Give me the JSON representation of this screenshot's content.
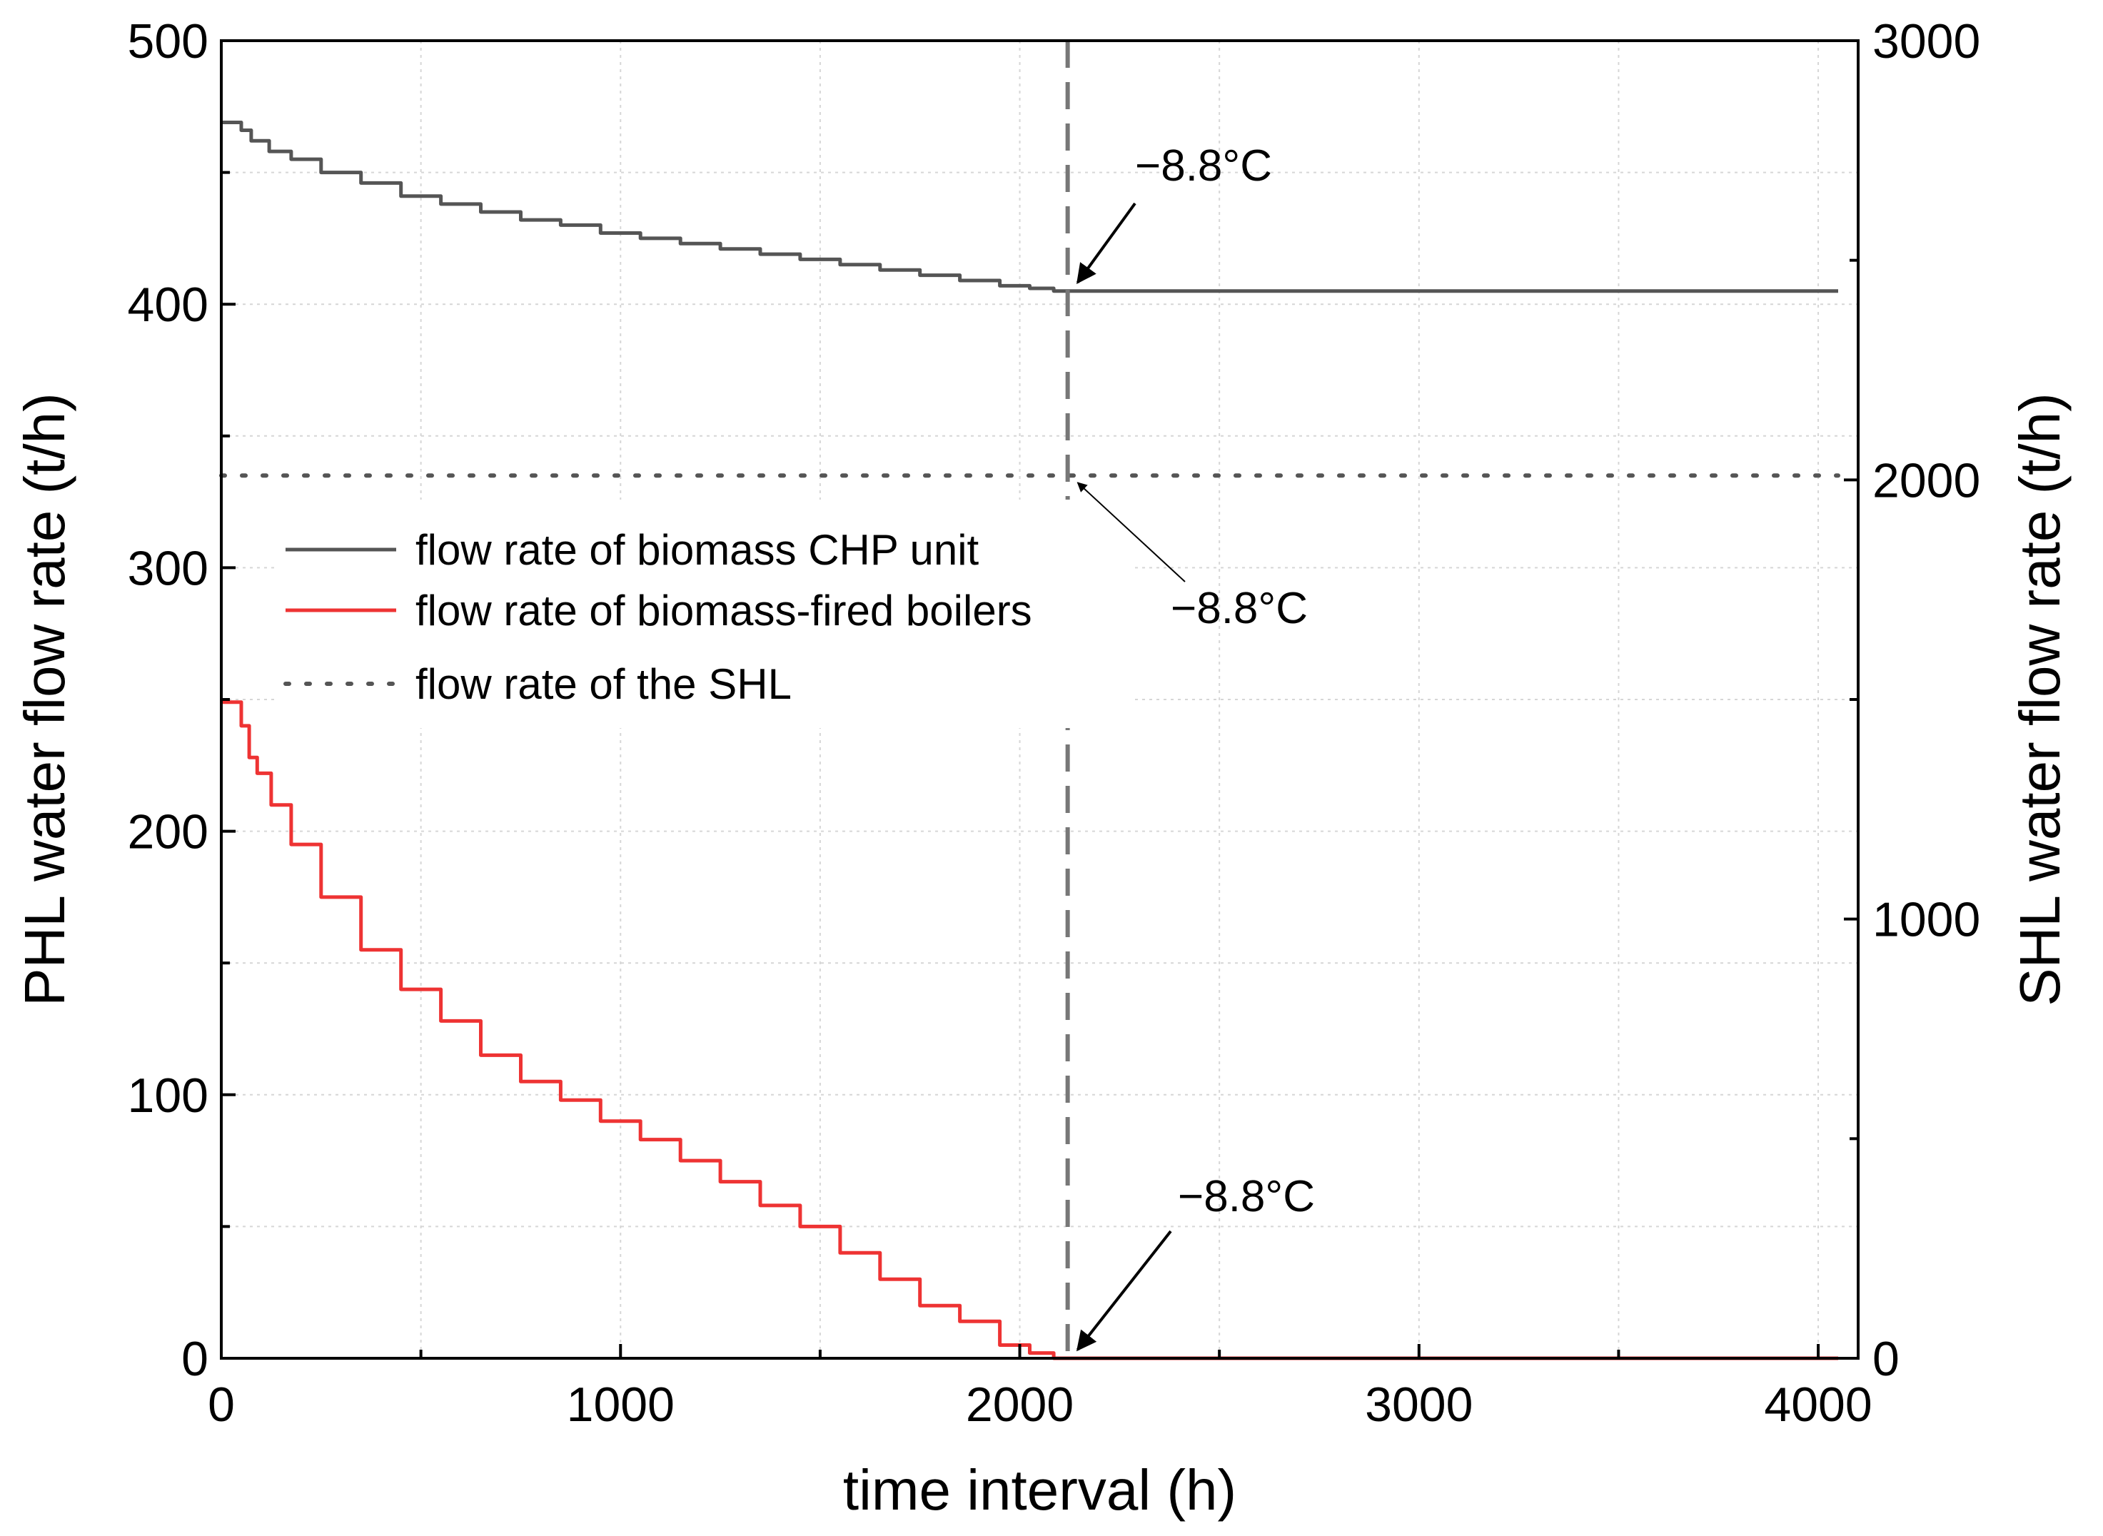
{
  "chart_data": {
    "type": "line",
    "title": "",
    "xlabel": "time interval  (h)",
    "ylabel_left": "PHL water flow rate (t/h)",
    "ylabel_right": "SHL water flow rate (t/h)",
    "xlim": [
      0,
      4100
    ],
    "ylim_left": [
      0,
      500
    ],
    "ylim_right": [
      0,
      3000
    ],
    "x_ticks": [
      "0",
      "1000",
      "2000",
      "3000",
      "4000"
    ],
    "y_left_ticks": [
      "0",
      "100",
      "200",
      "300",
      "400",
      "500"
    ],
    "y_right_ticks": [
      "0",
      "1000",
      "2000",
      "3000"
    ],
    "grid": true,
    "legend_position": "center-left",
    "marker_x": 2120,
    "series": [
      {
        "name": "flow rate of biomass CHP unit",
        "axis": "left",
        "style": "solid",
        "color": "#555555",
        "x": [
          0,
          40,
          60,
          90,
          150,
          200,
          300,
          400,
          500,
          600,
          700,
          800,
          900,
          1000,
          1100,
          1200,
          1300,
          1400,
          1500,
          1600,
          1700,
          1800,
          1900,
          2000,
          2050,
          2120,
          2200,
          2500,
          3000,
          3500,
          4000,
          4050
        ],
        "values": [
          469,
          469,
          466,
          462,
          458,
          455,
          450,
          446,
          441,
          438,
          435,
          432,
          430,
          427,
          425,
          423,
          421,
          419,
          417,
          415,
          413,
          411,
          409,
          407,
          406,
          405,
          405,
          405,
          405,
          405,
          405,
          405
        ]
      },
      {
        "name": "flow rate of biomass-fired boilers",
        "axis": "left",
        "style": "solid",
        "color": "#ee3333",
        "x": [
          0,
          40,
          60,
          80,
          100,
          150,
          200,
          300,
          400,
          500,
          600,
          700,
          800,
          900,
          1000,
          1100,
          1200,
          1300,
          1400,
          1500,
          1600,
          1700,
          1800,
          1900,
          2000,
          2050,
          2120,
          2500,
          3000,
          3500,
          4050
        ],
        "values": [
          249,
          249,
          240,
          228,
          222,
          210,
          195,
          175,
          155,
          140,
          128,
          115,
          105,
          98,
          90,
          83,
          75,
          67,
          58,
          50,
          40,
          30,
          20,
          14,
          5,
          2,
          0,
          0,
          0,
          0,
          0
        ]
      },
      {
        "name": "flow rate of the SHL",
        "axis": "right",
        "style": "dotted",
        "color": "#555555",
        "x": [
          0,
          4050
        ],
        "values": [
          2010,
          2010
        ]
      }
    ],
    "annotations": [
      {
        "text": "−8.8°C",
        "target_x": 2120,
        "target_value": 405,
        "axis": "left"
      },
      {
        "text": "−8.8°C",
        "target_x": 2120,
        "target_value": 2010,
        "axis": "right"
      },
      {
        "text": "−8.8°C",
        "target_x": 2120,
        "target_value": 0,
        "axis": "left"
      }
    ]
  }
}
